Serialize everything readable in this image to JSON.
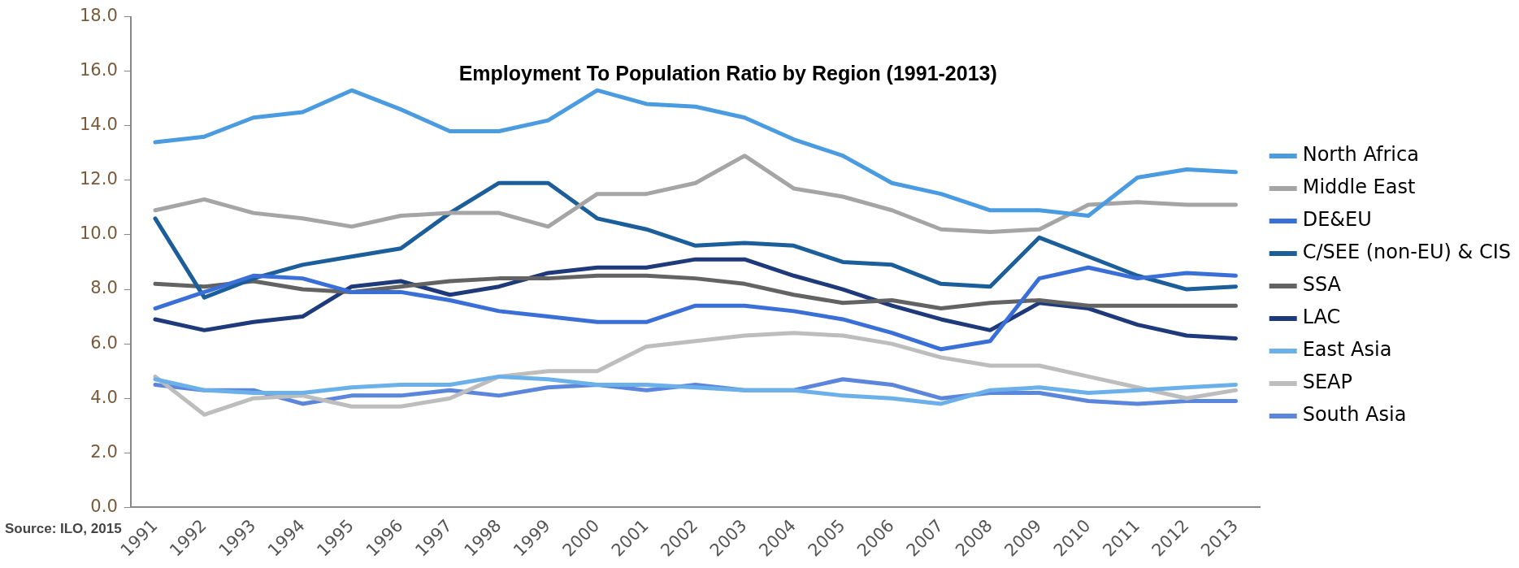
{
  "chart_data": {
    "type": "line",
    "title": "Employment To Population Ratio by Region (1991-2013)",
    "annotations": [
      "Source: ILO, 2015"
    ],
    "categories": [
      "1991",
      "1992",
      "1993",
      "1994",
      "1995",
      "1996",
      "1997",
      "1998",
      "1999",
      "2000",
      "2001",
      "2002",
      "2003",
      "2004",
      "2005",
      "2006",
      "2007",
      "2008",
      "2009",
      "2010",
      "2011",
      "2012",
      "2013"
    ],
    "ylim": [
      0,
      18
    ],
    "yticks": [
      {
        "value": 0,
        "label": "0.0"
      },
      {
        "value": 2,
        "label": "2.0"
      },
      {
        "value": 4,
        "label": "4.0"
      },
      {
        "value": 6,
        "label": "6.0"
      },
      {
        "value": 8,
        "label": "8.0"
      },
      {
        "value": 10,
        "label": "10.0"
      },
      {
        "value": 12,
        "label": "12.0"
      },
      {
        "value": 14,
        "label": "14.0"
      },
      {
        "value": 16,
        "label": "16.0"
      },
      {
        "value": 18,
        "label": "18.0"
      }
    ],
    "grid": false,
    "legend": "right",
    "marker": "none",
    "line_style": "solid",
    "series": [
      {
        "name": "North Africa",
        "color": "#4a9be0",
        "values": [
          13.4,
          13.6,
          14.3,
          14.5,
          15.3,
          14.6,
          13.8,
          13.8,
          14.2,
          15.3,
          14.8,
          14.7,
          14.3,
          13.5,
          12.9,
          11.9,
          11.5,
          10.9,
          10.9,
          10.7,
          12.1,
          12.4,
          12.3
        ]
      },
      {
        "name": "Middle East",
        "color": "#a5a5a5",
        "values": [
          10.9,
          11.3,
          10.8,
          10.6,
          10.3,
          10.7,
          10.8,
          10.8,
          10.3,
          11.5,
          11.5,
          11.9,
          12.9,
          11.7,
          11.4,
          10.9,
          10.2,
          10.1,
          10.2,
          11.1,
          11.2,
          11.1,
          11.1
        ]
      },
      {
        "name": "DE&EU",
        "color": "#3a6fd8",
        "values": [
          7.3,
          7.9,
          8.5,
          8.4,
          7.9,
          7.9,
          7.6,
          7.2,
          7.0,
          6.8,
          6.8,
          7.4,
          7.4,
          7.2,
          6.9,
          6.4,
          5.8,
          6.1,
          8.4,
          8.8,
          8.4,
          8.6,
          8.5
        ]
      },
      {
        "name": "C/SEE (non-EU) & CIS",
        "color": "#1b5e9a",
        "values": [
          10.6,
          7.7,
          8.4,
          8.9,
          9.2,
          9.5,
          10.8,
          11.9,
          11.9,
          10.6,
          10.2,
          9.6,
          9.7,
          9.6,
          9.0,
          8.9,
          8.2,
          8.1,
          9.9,
          9.2,
          8.5,
          8.0,
          8.1
        ]
      },
      {
        "name": "SSA",
        "color": "#636363",
        "values": [
          8.2,
          8.1,
          8.3,
          8.0,
          7.9,
          8.1,
          8.3,
          8.4,
          8.4,
          8.5,
          8.5,
          8.4,
          8.2,
          7.8,
          7.5,
          7.6,
          7.3,
          7.5,
          7.6,
          7.4,
          7.4,
          7.4,
          7.4
        ]
      },
      {
        "name": "LAC",
        "color": "#1f3a7a",
        "values": [
          6.9,
          6.5,
          6.8,
          7.0,
          8.1,
          8.3,
          7.8,
          8.1,
          8.6,
          8.8,
          8.8,
          9.1,
          9.1,
          8.5,
          8.0,
          7.4,
          6.9,
          6.5,
          7.5,
          7.3,
          6.7,
          6.3,
          6.2
        ]
      },
      {
        "name": "East Asia",
        "color": "#6cb0ea",
        "values": [
          4.7,
          4.3,
          4.2,
          4.2,
          4.4,
          4.5,
          4.5,
          4.8,
          4.7,
          4.5,
          4.5,
          4.4,
          4.3,
          4.3,
          4.1,
          4.0,
          3.8,
          4.3,
          4.4,
          4.2,
          4.3,
          4.4,
          4.5
        ]
      },
      {
        "name": "SEAP",
        "color": "#bdbdbd",
        "values": [
          4.8,
          3.4,
          4.0,
          4.1,
          3.7,
          3.7,
          4.0,
          4.8,
          5.0,
          5.0,
          5.9,
          6.1,
          6.3,
          6.4,
          6.3,
          6.0,
          5.5,
          5.2,
          5.2,
          4.8,
          4.4,
          4.0,
          4.3
        ]
      },
      {
        "name": "South Asia",
        "color": "#5b86dc",
        "values": [
          4.5,
          4.3,
          4.3,
          3.8,
          4.1,
          4.1,
          4.3,
          4.1,
          4.4,
          4.5,
          4.3,
          4.5,
          4.3,
          4.3,
          4.7,
          4.5,
          4.0,
          4.2,
          4.2,
          3.9,
          3.8,
          3.9,
          3.9
        ]
      }
    ]
  }
}
